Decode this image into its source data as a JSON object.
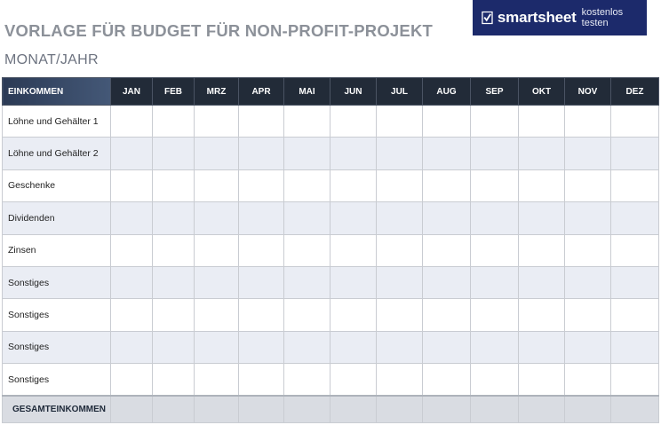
{
  "header": {
    "title": "VORLAGE FÜR BUDGET FÜR NON-PROFIT-PROJEKT",
    "subtitle": "MONAT/JAHR"
  },
  "banner": {
    "brand": "smartsheet",
    "cta": "kostenlos testen",
    "icon": "checkmark-logo-icon",
    "background": "#1c2a6b"
  },
  "table": {
    "corner_label": "EINKOMMEN",
    "months": [
      "JAN",
      "FEB",
      "MRZ",
      "APR",
      "MAI",
      "JUN",
      "JUL",
      "AUG",
      "SEP",
      "OKT",
      "NOV",
      "DEZ"
    ],
    "rows": [
      "Löhne und Gehälter 1",
      "Löhne und Gehälter 2",
      "Geschenke",
      "Dividenden",
      "Zinsen",
      "Sonstiges",
      "Sonstiges",
      "Sonstiges",
      "Sonstiges"
    ],
    "total_label": "GESAMTEINKOMMEN"
  }
}
